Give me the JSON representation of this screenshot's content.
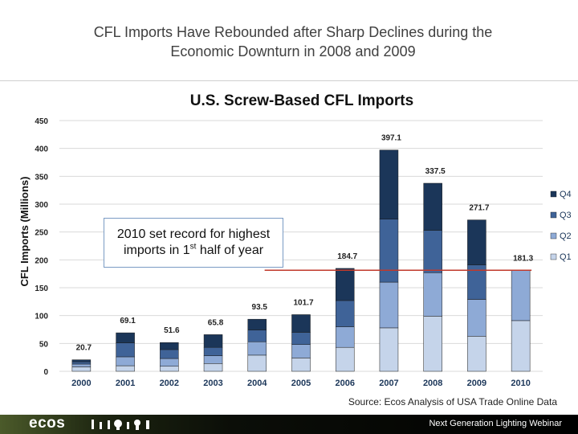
{
  "slide": {
    "title_line1": "CFL Imports Have Rebounded after Sharp Declines during the",
    "title_line2": "Economic Downturn in 2008 and 2009"
  },
  "callout": {
    "text_part1": "2010 set record for highest",
    "text_part2": "imports in 1",
    "text_sup": "st",
    "text_part3": " half of year"
  },
  "source": "Source: Ecos Analysis of USA Trade Online Data",
  "footer": {
    "logo": "ecos",
    "text": "Next Generation Lighting Webinar"
  },
  "colors": {
    "Q1": "#c5d4ea",
    "Q2": "#8eaad6",
    "Q3": "#3f6398",
    "Q4": "#1b3659",
    "reference_line": "#c0392b"
  },
  "chart_data": {
    "type": "bar",
    "stacked": true,
    "title": "U.S. Screw-Based CFL Imports",
    "xlabel": "",
    "ylabel": "CFL Imports (Millions)",
    "ylim": [
      0,
      450
    ],
    "yticks": [
      0,
      50,
      100,
      150,
      200,
      250,
      300,
      350,
      400,
      450
    ],
    "categories": [
      "2000",
      "2001",
      "2002",
      "2003",
      "2004",
      "2005",
      "2006",
      "2007",
      "2008",
      "2009",
      "2010"
    ],
    "series": [
      {
        "name": "Q1",
        "values": [
          8,
          10,
          9,
          14,
          29,
          24,
          43,
          78,
          99,
          63,
          91
        ]
      },
      {
        "name": "Q2",
        "values": [
          5,
          16,
          14,
          14,
          24,
          24,
          37,
          82,
          78,
          66,
          90.3
        ]
      },
      {
        "name": "Q3",
        "values": [
          4,
          25,
          16,
          15,
          21,
          22,
          47,
          113,
          76,
          62,
          0
        ]
      },
      {
        "name": "Q4",
        "values": [
          3.7,
          18.1,
          12.6,
          22.8,
          19.5,
          31.7,
          57.7,
          124.1,
          84.5,
          80.7,
          0
        ]
      }
    ],
    "totals": [
      20.7,
      69.1,
      51.6,
      65.8,
      93.5,
      101.7,
      184.7,
      397.1,
      337.5,
      271.7,
      181.3
    ],
    "total_labels": [
      "20.7",
      "69.1",
      "51.6",
      "65.8",
      "93.5",
      "101.7",
      "184.7",
      "397.1",
      "337.5",
      "271.7",
      "181.3"
    ],
    "reference_line_value": 181.3,
    "legend_position": "right",
    "legend_order": [
      "Q4",
      "Q3",
      "Q2",
      "Q1"
    ],
    "grid": true
  }
}
